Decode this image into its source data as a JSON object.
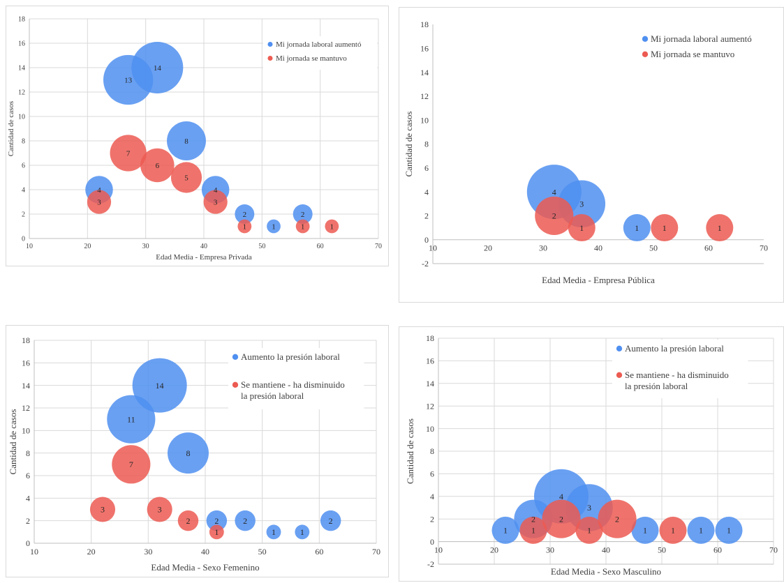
{
  "chart_data": [
    {
      "type": "bubble",
      "xlabel": "Edad Media - Empresa Privada",
      "ylabel": "Cantidad de casos",
      "xlim": [
        10,
        70
      ],
      "ylim": [
        0,
        18
      ],
      "xticks": [
        10,
        20,
        30,
        40,
        50,
        60,
        70
      ],
      "yticks": [
        0,
        2,
        4,
        6,
        8,
        10,
        12,
        14,
        16,
        18
      ],
      "grid": true,
      "legend_position": "top-right",
      "series": [
        {
          "name": "Mi jornada laboral aumentó",
          "color": "#4f8ff0",
          "points": [
            {
              "x": 22,
              "y": 4,
              "label": "4"
            },
            {
              "x": 27,
              "y": 13,
              "label": "13"
            },
            {
              "x": 32,
              "y": 14,
              "label": "14"
            },
            {
              "x": 37,
              "y": 8,
              "label": "8"
            },
            {
              "x": 42,
              "y": 4,
              "label": "4"
            },
            {
              "x": 47,
              "y": 2,
              "label": "2"
            },
            {
              "x": 52,
              "y": 1,
              "label": "1"
            },
            {
              "x": 57,
              "y": 2,
              "label": "2"
            }
          ]
        },
        {
          "name": "Mi jornada se mantuvo",
          "color": "#ec5b52",
          "points": [
            {
              "x": 22,
              "y": 3,
              "label": "3"
            },
            {
              "x": 27,
              "y": 7,
              "label": "7"
            },
            {
              "x": 32,
              "y": 6,
              "label": "6"
            },
            {
              "x": 37,
              "y": 5,
              "label": "5"
            },
            {
              "x": 42,
              "y": 3,
              "label": "3"
            },
            {
              "x": 47,
              "y": 1,
              "label": "1"
            },
            {
              "x": 57,
              "y": 1,
              "label": "1"
            },
            {
              "x": 62,
              "y": 1,
              "label": "1"
            }
          ]
        }
      ]
    },
    {
      "type": "bubble",
      "xlabel": "Edad Media - Empresa Pública",
      "ylabel": "Cantidad de casos",
      "xlim": [
        10,
        70
      ],
      "ylim": [
        -2,
        18
      ],
      "xticks": [
        10,
        20,
        30,
        40,
        50,
        60,
        70
      ],
      "yticks": [
        -2,
        0,
        2,
        4,
        6,
        8,
        10,
        12,
        14,
        16,
        18
      ],
      "grid": false,
      "legend_position": "top-right",
      "series": [
        {
          "name": "Mi jornada laboral aumentó",
          "color": "#4f8ff0",
          "points": [
            {
              "x": 32,
              "y": 4,
              "label": "4"
            },
            {
              "x": 37,
              "y": 3,
              "label": "3"
            },
            {
              "x": 47,
              "y": 1,
              "label": "1"
            }
          ]
        },
        {
          "name": "Mi jornada se mantuvo",
          "color": "#ec5b52",
          "points": [
            {
              "x": 32,
              "y": 2,
              "label": "2"
            },
            {
              "x": 37,
              "y": 1,
              "label": "1"
            },
            {
              "x": 52,
              "y": 1,
              "label": "1"
            },
            {
              "x": 62,
              "y": 1,
              "label": "1"
            }
          ]
        }
      ]
    },
    {
      "type": "bubble",
      "xlabel": "Edad Media - Sexo Femenino",
      "ylabel": "Cantidad de casos",
      "xlim": [
        10,
        70
      ],
      "ylim": [
        0,
        18
      ],
      "xticks": [
        10,
        20,
        30,
        40,
        50,
        60,
        70
      ],
      "yticks": [
        0,
        2,
        4,
        6,
        8,
        10,
        12,
        14,
        16,
        18
      ],
      "grid": true,
      "legend_position": "top-right",
      "series": [
        {
          "name": "Aumento la presión laboral",
          "color": "#4f8ff0",
          "points": [
            {
              "x": 27,
              "y": 11,
              "label": "11"
            },
            {
              "x": 32,
              "y": 14,
              "label": "14"
            },
            {
              "x": 37,
              "y": 8,
              "label": "8"
            },
            {
              "x": 42,
              "y": 2,
              "label": "2"
            },
            {
              "x": 47,
              "y": 2,
              "label": "2"
            },
            {
              "x": 52,
              "y": 1,
              "label": "1"
            },
            {
              "x": 57,
              "y": 1,
              "label": "1"
            },
            {
              "x": 62,
              "y": 2,
              "label": "2"
            }
          ]
        },
        {
          "name": "Se mantiene - ha disminuido la presión laboral",
          "color": "#ec5b52",
          "points": [
            {
              "x": 22,
              "y": 3,
              "label": "3"
            },
            {
              "x": 27,
              "y": 7,
              "label": "7"
            },
            {
              "x": 32,
              "y": 3,
              "label": "3"
            },
            {
              "x": 37,
              "y": 2,
              "label": "2"
            },
            {
              "x": 42,
              "y": 1,
              "label": "1"
            }
          ]
        }
      ]
    },
    {
      "type": "bubble",
      "xlabel": "Edad Media - Sexo Masculino",
      "ylabel": "Cantidad de casos",
      "xlim": [
        10,
        70
      ],
      "ylim": [
        -2,
        18
      ],
      "xticks": [
        10,
        20,
        30,
        40,
        50,
        60,
        70
      ],
      "yticks": [
        -2,
        0,
        2,
        4,
        6,
        8,
        10,
        12,
        14,
        16,
        18
      ],
      "grid": true,
      "legend_position": "top-right",
      "series": [
        {
          "name": "Aumento la presión laboral",
          "color": "#4f8ff0",
          "points": [
            {
              "x": 22,
              "y": 1,
              "label": "1"
            },
            {
              "x": 27,
              "y": 2,
              "label": "2"
            },
            {
              "x": 32,
              "y": 4,
              "label": "4"
            },
            {
              "x": 37,
              "y": 3,
              "label": "3"
            },
            {
              "x": 47,
              "y": 1,
              "label": "1"
            },
            {
              "x": 57,
              "y": 1,
              "label": "1"
            },
            {
              "x": 62,
              "y": 1,
              "label": "1"
            }
          ]
        },
        {
          "name": "Se mantiene - ha disminuido la presión laboral",
          "color": "#ec5b52",
          "points": [
            {
              "x": 27,
              "y": 1,
              "label": "1"
            },
            {
              "x": 32,
              "y": 2,
              "label": "2"
            },
            {
              "x": 37,
              "y": 1,
              "label": "1"
            },
            {
              "x": 42,
              "y": 2,
              "label": "2"
            },
            {
              "x": 52,
              "y": 1,
              "label": "1"
            }
          ]
        }
      ]
    }
  ]
}
